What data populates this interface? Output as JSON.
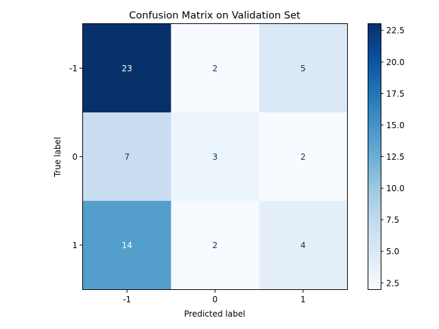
{
  "chart_data": {
    "type": "heatmap",
    "title": "Confusion Matrix on Validation Set",
    "xlabel": "Predicted label",
    "ylabel": "True label",
    "x_tick_labels": [
      "-1",
      "0",
      "1"
    ],
    "y_tick_labels": [
      "-1",
      "0",
      "1"
    ],
    "matrix": [
      [
        23,
        2,
        5
      ],
      [
        7,
        3,
        2
      ],
      [
        14,
        2,
        4
      ]
    ],
    "colormap": "Blues",
    "colorbar_range": [
      2,
      23
    ],
    "colorbar_ticks": [
      "2.5",
      "5.0",
      "7.5",
      "10.0",
      "12.5",
      "15.0",
      "17.5",
      "20.0",
      "22.5"
    ],
    "grid": false,
    "colors": {
      "cell_text_dark": "#08306b",
      "cell_text_light": "#ffffff"
    }
  }
}
